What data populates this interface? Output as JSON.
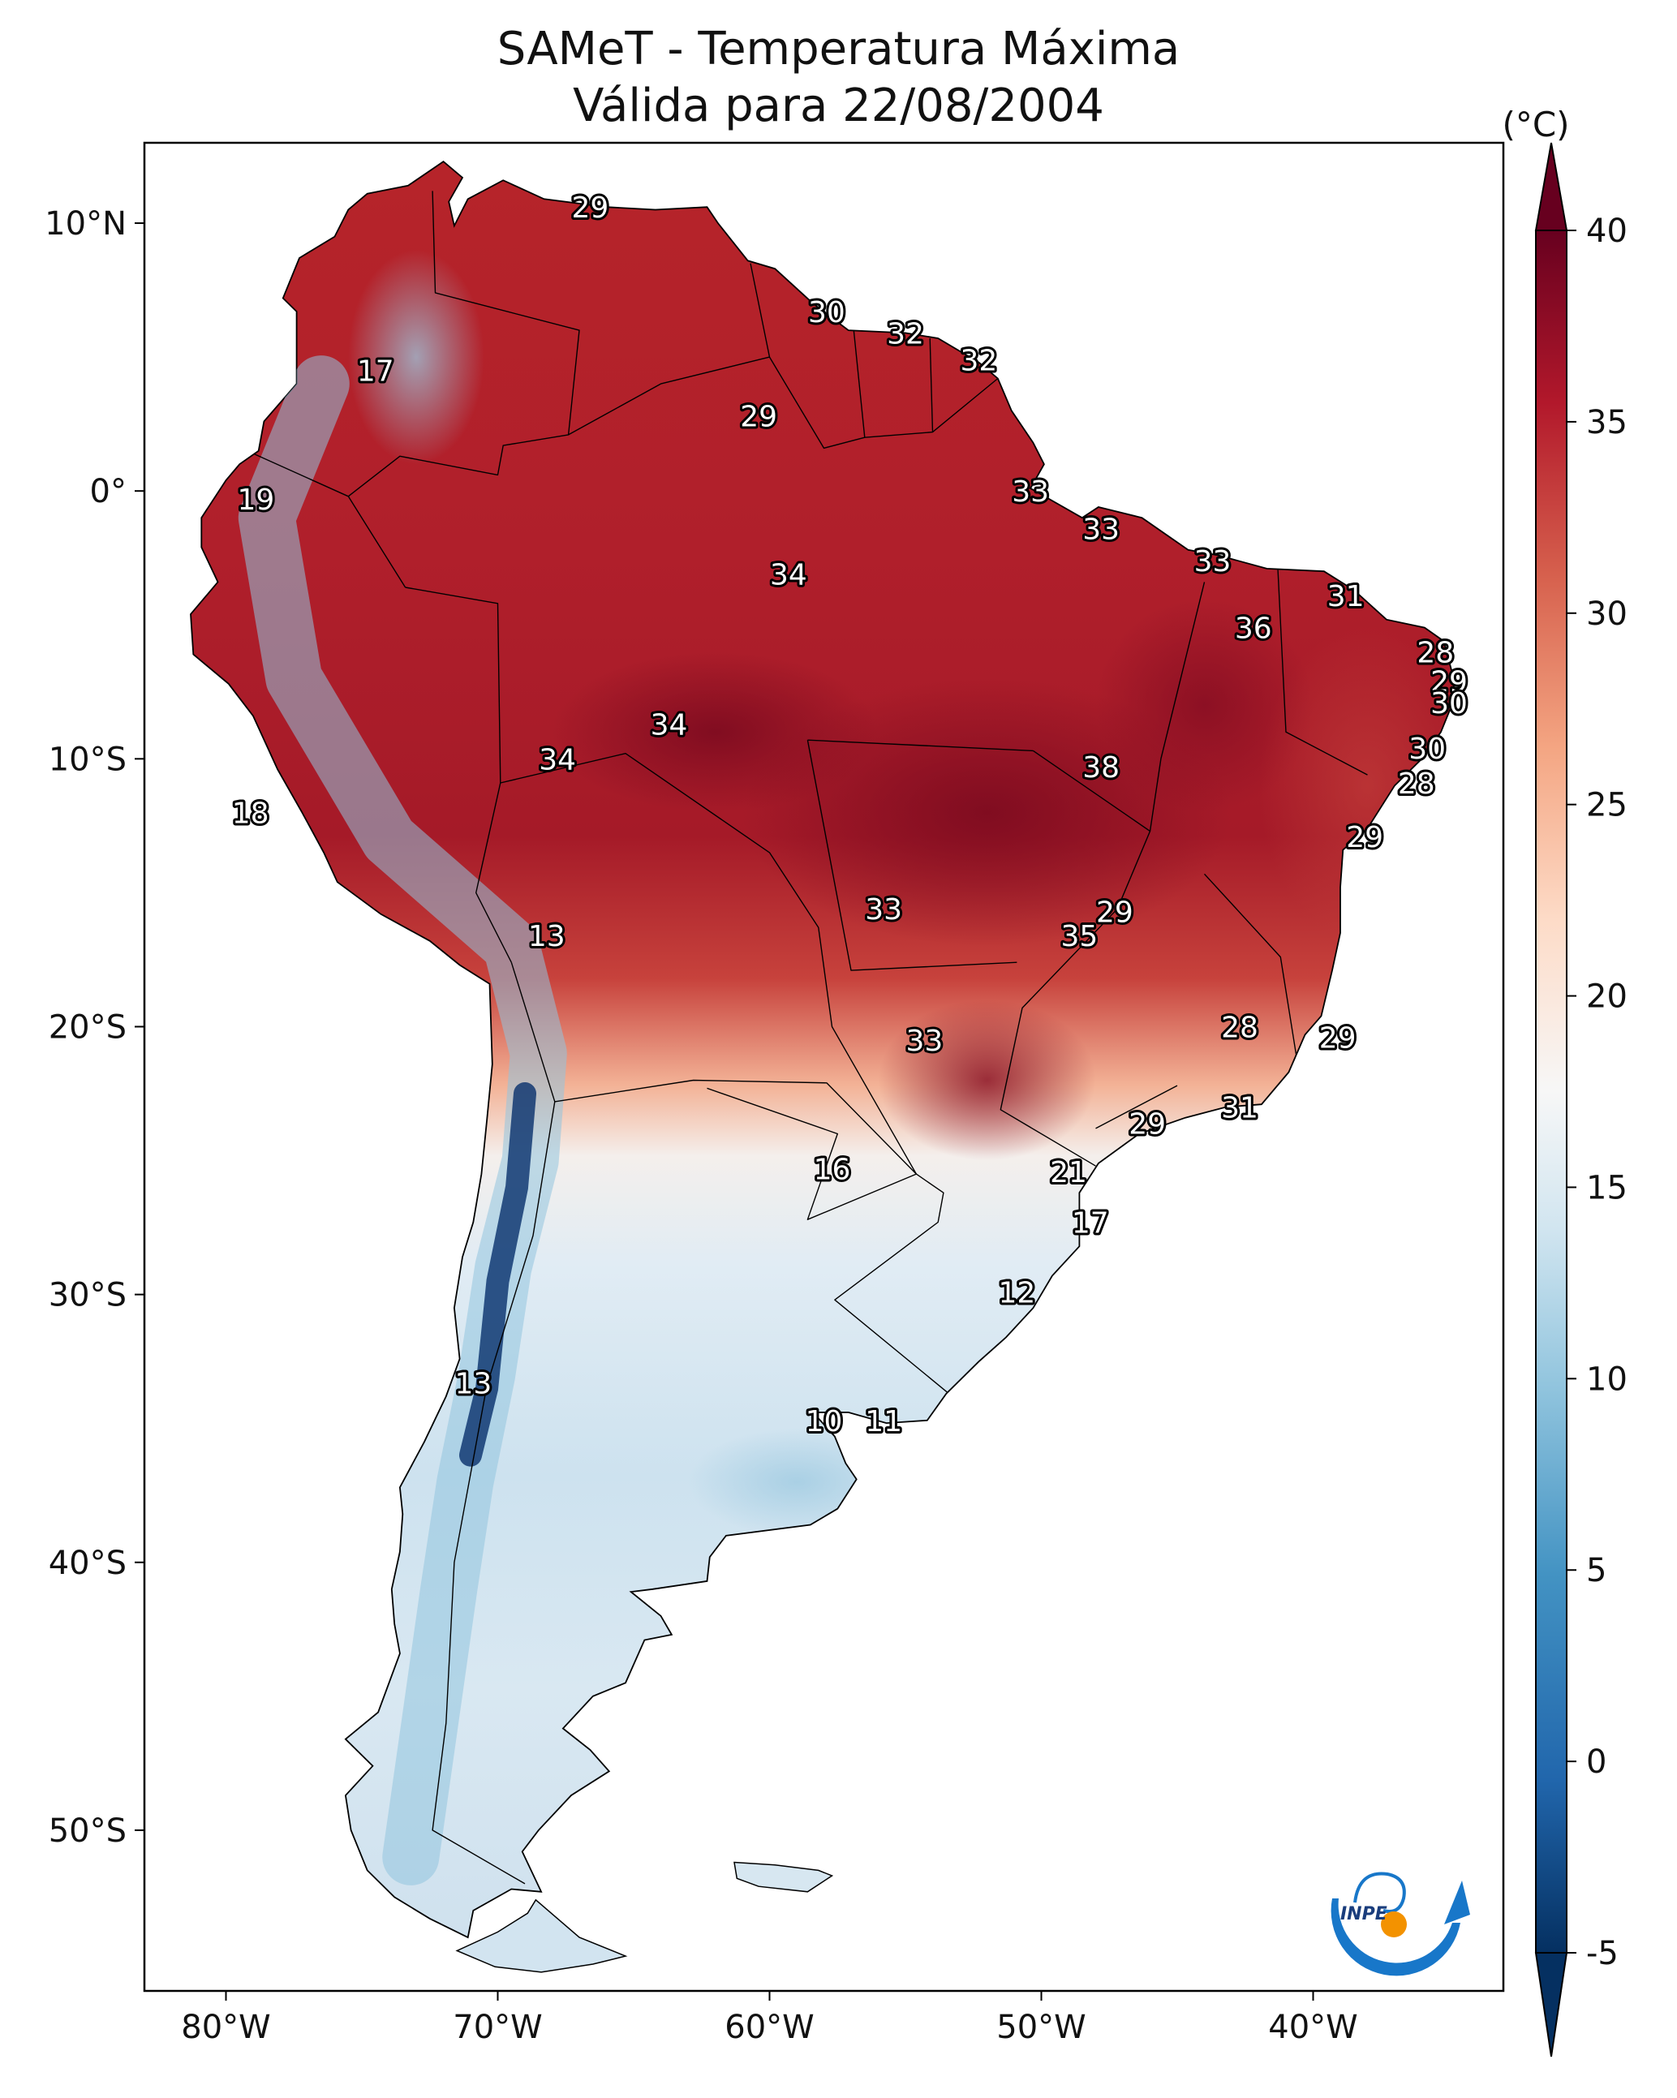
{
  "figure": {
    "title": "SAMeT - Temperatura Máxima",
    "subtitle": "Válida para 22/08/2004"
  },
  "map": {
    "projection": "PlateCarree",
    "extent": {
      "lon": [
        -83,
        -33
      ],
      "lat": [
        -56,
        13
      ]
    },
    "lon_ticks": [
      {
        "value": -80,
        "label": "80°W"
      },
      {
        "value": -70,
        "label": "70°W"
      },
      {
        "value": -60,
        "label": "60°W"
      },
      {
        "value": -50,
        "label": "50°W"
      },
      {
        "value": -40,
        "label": "40°W"
      }
    ],
    "lat_ticks": [
      {
        "value": 10,
        "label": "10°N"
      },
      {
        "value": 0,
        "label": "0°"
      },
      {
        "value": -10,
        "label": "10°S"
      },
      {
        "value": -20,
        "label": "20°S"
      },
      {
        "value": -30,
        "label": "30°S"
      },
      {
        "value": -40,
        "label": "40°S"
      },
      {
        "value": -50,
        "label": "50°S"
      }
    ],
    "field_labels": [
      {
        "lon": -66.6,
        "lat": 10.6,
        "text": "29"
      },
      {
        "lon": -74.5,
        "lat": 4.5,
        "text": "17"
      },
      {
        "lon": -57.9,
        "lat": 6.7,
        "text": "30"
      },
      {
        "lon": -55.0,
        "lat": 5.9,
        "text": "32"
      },
      {
        "lon": -52.3,
        "lat": 4.9,
        "text": "32"
      },
      {
        "lon": -60.4,
        "lat": 2.8,
        "text": "29"
      },
      {
        "lon": -78.9,
        "lat": -0.3,
        "text": "19"
      },
      {
        "lon": -50.4,
        "lat": 0.0,
        "text": "33"
      },
      {
        "lon": -47.8,
        "lat": -1.4,
        "text": "33"
      },
      {
        "lon": -43.7,
        "lat": -2.6,
        "text": "33"
      },
      {
        "lon": -59.3,
        "lat": -3.1,
        "text": "34"
      },
      {
        "lon": -38.8,
        "lat": -3.9,
        "text": "31"
      },
      {
        "lon": -42.2,
        "lat": -5.1,
        "text": "36"
      },
      {
        "lon": -35.5,
        "lat": -6.0,
        "text": "28"
      },
      {
        "lon": -35.0,
        "lat": -7.1,
        "text": "29"
      },
      {
        "lon": -35.0,
        "lat": -7.9,
        "text": "30"
      },
      {
        "lon": -63.7,
        "lat": -8.7,
        "text": "34"
      },
      {
        "lon": -67.8,
        "lat": -10.0,
        "text": "34"
      },
      {
        "lon": -35.8,
        "lat": -9.6,
        "text": "30"
      },
      {
        "lon": -47.8,
        "lat": -10.3,
        "text": "38"
      },
      {
        "lon": -36.2,
        "lat": -10.9,
        "text": "28"
      },
      {
        "lon": -79.1,
        "lat": -12.0,
        "text": "18"
      },
      {
        "lon": -38.1,
        "lat": -12.9,
        "text": "29"
      },
      {
        "lon": -55.8,
        "lat": -15.6,
        "text": "33"
      },
      {
        "lon": -47.3,
        "lat": -15.7,
        "text": "29"
      },
      {
        "lon": -68.2,
        "lat": -16.6,
        "text": "13"
      },
      {
        "lon": -48.6,
        "lat": -16.6,
        "text": "35"
      },
      {
        "lon": -42.7,
        "lat": -20.0,
        "text": "28"
      },
      {
        "lon": -54.3,
        "lat": -20.5,
        "text": "33"
      },
      {
        "lon": -39.1,
        "lat": -20.4,
        "text": "29"
      },
      {
        "lon": -42.7,
        "lat": -23.0,
        "text": "31"
      },
      {
        "lon": -46.1,
        "lat": -23.6,
        "text": "29"
      },
      {
        "lon": -57.7,
        "lat": -25.3,
        "text": "16"
      },
      {
        "lon": -49.0,
        "lat": -25.4,
        "text": "21"
      },
      {
        "lon": -48.2,
        "lat": -27.3,
        "text": "17"
      },
      {
        "lon": -50.9,
        "lat": -29.9,
        "text": "12"
      },
      {
        "lon": -70.9,
        "lat": -33.3,
        "text": "13"
      },
      {
        "lon": -58.0,
        "lat": -34.7,
        "text": "10"
      },
      {
        "lon": -55.8,
        "lat": -34.7,
        "text": "11"
      }
    ],
    "logo_text": "INPE"
  },
  "colorbar": {
    "unit_label": "(°C)",
    "range": [
      -5,
      40
    ],
    "extend": "both",
    "colormap": "RdBu_r",
    "ticks": [
      {
        "value": 40,
        "label": "40"
      },
      {
        "value": 35,
        "label": "35"
      },
      {
        "value": 30,
        "label": "30"
      },
      {
        "value": 25,
        "label": "25"
      },
      {
        "value": 20,
        "label": "20"
      },
      {
        "value": 15,
        "label": "15"
      },
      {
        "value": 10,
        "label": "10"
      },
      {
        "value": 5,
        "label": "5"
      },
      {
        "value": 0,
        "label": "0"
      },
      {
        "value": -5,
        "label": "-5"
      }
    ],
    "colors": [
      "#053061",
      "#2166ac",
      "#4393c3",
      "#92c5de",
      "#d1e5f0",
      "#f7f7f7",
      "#fddbc7",
      "#f4a582",
      "#d6604d",
      "#b2182b",
      "#67001f"
    ]
  }
}
